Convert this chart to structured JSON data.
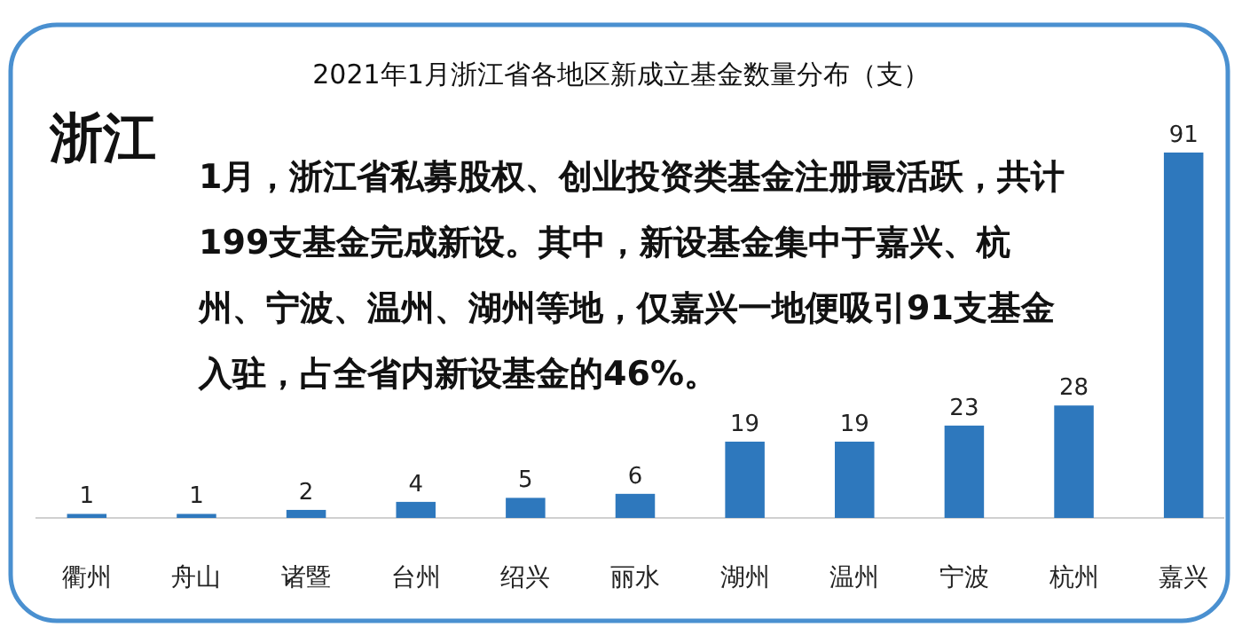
{
  "chart_data": {
    "type": "bar",
    "title": "2021年1月浙江省各地区新成立基金数量分布（支）",
    "categories": [
      "衢州",
      "舟山",
      "诸暨",
      "台州",
      "绍兴",
      "丽水",
      "湖州",
      "温州",
      "宁波",
      "杭州",
      "嘉兴"
    ],
    "values": [
      1,
      1,
      2,
      4,
      5,
      6,
      19,
      19,
      23,
      28,
      91
    ],
    "color": "#2e78bd",
    "data_labels": true,
    "annotations": [
      "浙江",
      "1月，浙江省私募股权、创业投资类基金注册最活跃，共计199支基金完成新设。其中，新设基金集中于嘉兴、杭州、宁波、温州、湖州等地，仅嘉兴一地便吸引91支基金入驻，占全省内新设基金的46%。"
    ]
  }
}
